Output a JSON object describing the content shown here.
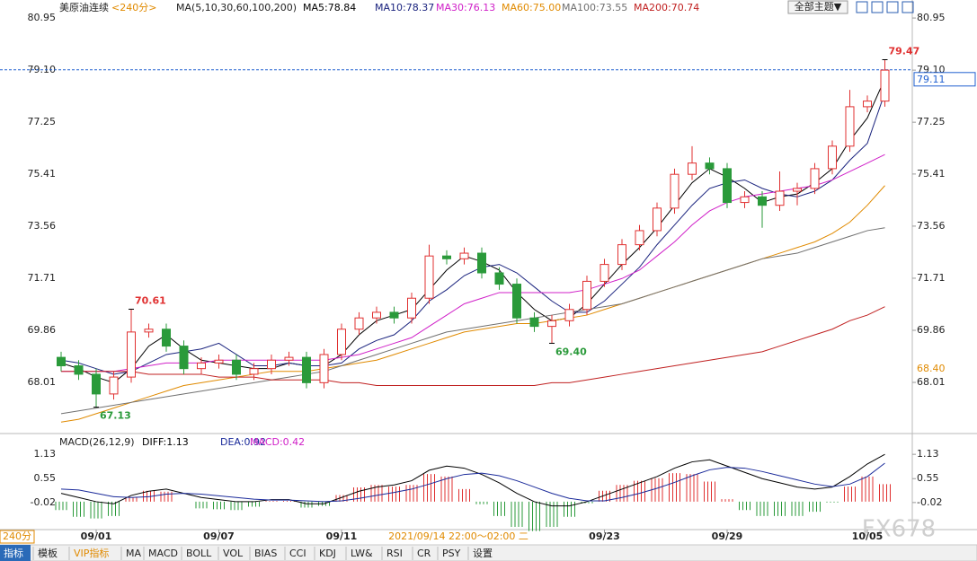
{
  "chart_data": [
    {
      "type": "candlestick",
      "title": "美原油连续",
      "period": "<240分>",
      "indicator": "MA(5,10,30,60,100,200)",
      "categories": [
        null,
        null,
        "09/01",
        null,
        null,
        null,
        null,
        null,
        null,
        "09/07",
        null,
        null,
        null,
        null,
        null,
        null,
        "09/11",
        null,
        null,
        null,
        null,
        null,
        null,
        null,
        null,
        null,
        null,
        null,
        null,
        null,
        null,
        "09/23",
        null,
        null,
        null,
        null,
        null,
        null,
        "09/29",
        null,
        null,
        null,
        null,
        null,
        null,
        null,
        "10/05",
        null
      ],
      "open": [
        68.9,
        68.6,
        68.3,
        67.6,
        68.2,
        69.8,
        69.9,
        69.3,
        68.5,
        68.7,
        68.8,
        68.3,
        68.5,
        68.8,
        68.9,
        68.0,
        69.0,
        69.9,
        70.3,
        70.5,
        70.3,
        71.0,
        72.5,
        72.4,
        72.6,
        71.9,
        71.5,
        70.3,
        70.0,
        70.2,
        70.6,
        71.6,
        72.2,
        72.9,
        73.4,
        74.2,
        75.4,
        75.8,
        75.6,
        74.4,
        74.6,
        74.3,
        74.8,
        74.9,
        75.6,
        76.4,
        77.8,
        78.0
      ],
      "high": [
        69.1,
        68.8,
        68.5,
        68.4,
        70.61,
        70.1,
        70.1,
        69.5,
        68.9,
        69.0,
        69.0,
        68.7,
        69.0,
        69.1,
        69.1,
        69.2,
        70.1,
        70.5,
        70.7,
        70.7,
        71.2,
        72.9,
        72.7,
        72.8,
        72.8,
        72.1,
        71.7,
        70.5,
        70.4,
        70.8,
        71.8,
        72.4,
        73.1,
        73.6,
        74.4,
        75.6,
        76.4,
        76.0,
        75.8,
        74.8,
        74.8,
        75.5,
        75.1,
        75.8,
        76.6,
        78.4,
        78.2,
        79.47
      ],
      "low": [
        68.4,
        68.1,
        67.13,
        67.4,
        68.0,
        69.6,
        69.1,
        68.3,
        68.3,
        68.5,
        68.1,
        68.1,
        68.3,
        68.6,
        67.8,
        67.8,
        68.8,
        69.7,
        70.1,
        70.1,
        70.1,
        70.8,
        72.2,
        72.2,
        71.7,
        71.3,
        70.1,
        69.8,
        69.4,
        70.0,
        70.4,
        71.4,
        72.0,
        72.7,
        73.2,
        74.0,
        75.2,
        75.4,
        74.2,
        74.2,
        73.5,
        74.1,
        74.3,
        74.7,
        75.4,
        76.2,
        77.6,
        77.8
      ],
      "close": [
        68.6,
        68.3,
        67.6,
        68.2,
        69.8,
        69.9,
        69.3,
        68.5,
        68.7,
        68.8,
        68.3,
        68.5,
        68.8,
        68.9,
        68.0,
        69.0,
        69.9,
        70.3,
        70.5,
        70.3,
        71.0,
        72.5,
        72.4,
        72.6,
        71.9,
        71.5,
        70.3,
        70.0,
        70.2,
        70.6,
        71.6,
        72.2,
        72.9,
        73.4,
        74.2,
        75.4,
        75.8,
        75.6,
        74.4,
        74.6,
        74.3,
        74.8,
        74.9,
        75.6,
        76.4,
        77.8,
        78.0,
        79.1
      ],
      "up_color": "#e03030",
      "down_color": "#2a9a3a",
      "series": [
        {
          "name": "MA5:78.84",
          "color": "#000000",
          "values": [
            68.7,
            68.5,
            68.2,
            68.0,
            68.5,
            69.3,
            69.7,
            69.2,
            68.8,
            68.7,
            68.6,
            68.5,
            68.5,
            68.7,
            68.6,
            68.6,
            69.0,
            69.7,
            70.2,
            70.4,
            70.6,
            71.3,
            72.0,
            72.5,
            72.3,
            72.0,
            71.2,
            70.6,
            70.2,
            70.3,
            70.8,
            71.5,
            72.2,
            72.8,
            73.5,
            74.3,
            75.1,
            75.6,
            75.3,
            74.9,
            74.4,
            74.6,
            74.7,
            75.1,
            75.6,
            76.6,
            77.4,
            78.8
          ]
        },
        {
          "name": "MA10:78.37",
          "color": "#1a237e",
          "values": [
            68.8,
            68.7,
            68.5,
            68.3,
            68.4,
            68.7,
            69.0,
            69.1,
            69.2,
            69.4,
            69.0,
            68.6,
            68.6,
            68.7,
            68.6,
            68.6,
            68.7,
            69.2,
            69.5,
            69.7,
            70.2,
            70.9,
            71.3,
            71.8,
            72.1,
            72.2,
            71.9,
            71.4,
            70.9,
            70.5,
            70.5,
            70.9,
            71.5,
            72.1,
            72.9,
            73.6,
            74.3,
            74.9,
            75.1,
            75.2,
            74.9,
            74.7,
            74.6,
            74.8,
            75.2,
            75.9,
            76.5,
            78.3
          ]
        },
        {
          "name": "MA30:76.13",
          "color": "#d020c8",
          "values": [
            68.4,
            68.4,
            68.4,
            68.4,
            68.5,
            68.6,
            68.7,
            68.7,
            68.7,
            68.8,
            68.8,
            68.8,
            68.8,
            68.8,
            68.8,
            68.8,
            68.9,
            69.0,
            69.2,
            69.4,
            69.6,
            70.0,
            70.4,
            70.8,
            71.0,
            71.2,
            71.2,
            71.2,
            71.2,
            71.2,
            71.3,
            71.5,
            71.7,
            72.0,
            72.5,
            73.0,
            73.6,
            74.1,
            74.4,
            74.6,
            74.7,
            74.8,
            74.9,
            75.0,
            75.2,
            75.5,
            75.8,
            76.1
          ]
        },
        {
          "name": "MA60:75.00",
          "color": "#e08a00",
          "values": [
            66.6,
            66.7,
            66.9,
            67.1,
            67.3,
            67.5,
            67.7,
            67.9,
            68.0,
            68.1,
            68.2,
            68.3,
            68.4,
            68.4,
            68.4,
            68.5,
            68.6,
            68.7,
            68.8,
            69.0,
            69.2,
            69.4,
            69.6,
            69.8,
            69.9,
            70.0,
            70.1,
            70.1,
            70.2,
            70.3,
            70.4,
            70.6,
            70.8,
            71.0,
            71.2,
            71.4,
            71.6,
            71.8,
            72.0,
            72.2,
            72.4,
            72.6,
            72.8,
            73.0,
            73.3,
            73.7,
            74.3,
            75.0
          ]
        },
        {
          "name": "MA100:73.55",
          "color": "#707070",
          "values": [
            66.9,
            67.0,
            67.1,
            67.2,
            67.3,
            67.4,
            67.5,
            67.6,
            67.7,
            67.8,
            67.9,
            68.0,
            68.1,
            68.2,
            68.3,
            68.4,
            68.6,
            68.8,
            69.0,
            69.2,
            69.4,
            69.6,
            69.8,
            69.9,
            70.0,
            70.1,
            70.2,
            70.3,
            70.4,
            70.5,
            70.6,
            70.7,
            70.8,
            71.0,
            71.2,
            71.4,
            71.6,
            71.8,
            72.0,
            72.2,
            72.4,
            72.5,
            72.6,
            72.8,
            73.0,
            73.2,
            73.4,
            73.5
          ]
        },
        {
          "name": "MA200:70.74",
          "color": "#c02020",
          "values": [
            68.4,
            68.4,
            68.4,
            68.4,
            68.4,
            68.3,
            68.3,
            68.3,
            68.3,
            68.2,
            68.2,
            68.2,
            68.1,
            68.1,
            68.1,
            68.1,
            68.0,
            68.0,
            67.9,
            67.9,
            67.9,
            67.9,
            67.9,
            67.9,
            67.9,
            67.9,
            67.9,
            67.9,
            68.0,
            68.0,
            68.1,
            68.2,
            68.3,
            68.4,
            68.5,
            68.6,
            68.7,
            68.8,
            68.9,
            69.0,
            69.1,
            69.3,
            69.5,
            69.7,
            69.9,
            70.2,
            70.4,
            70.7
          ]
        }
      ],
      "ylim": [
        66.29,
        81.59
      ],
      "yticks": [
        80.95,
        {
          "value": 79.1,
          "label": "79.10"
        },
        77.25,
        75.41,
        73.56,
        71.71,
        69.86,
        68.01
      ],
      "annotations": [
        {
          "value": 70.61,
          "color": "#e03030"
        },
        {
          "value": 67.13,
          "color": "#2a9a3a"
        },
        {
          "value": {
            "value": 69.4,
            "label": "69.40"
          },
          "color": "#2a9a3a"
        },
        {
          "value": 79.47,
          "color": "#e03030"
        }
      ],
      "last_price": 79.11,
      "last_price_color": "#2060d0",
      "side_label": {
        "value": 68.4,
        "label": "68.40"
      },
      "side_label_color": "#e08a00"
    },
    {
      "type": "macd",
      "title": "MACD(26,12,9)",
      "series": [
        {
          "name": "DIFF:1.13",
          "color": "#000000",
          "values": [
            0.2,
            0.1,
            0.0,
            -0.05,
            0.15,
            0.25,
            0.3,
            0.2,
            0.1,
            0.05,
            0.0,
            0.0,
            0.05,
            0.05,
            -0.05,
            -0.05,
            0.1,
            0.25,
            0.35,
            0.4,
            0.5,
            0.75,
            0.85,
            0.8,
            0.65,
            0.45,
            0.2,
            0.0,
            -0.1,
            -0.1,
            0.0,
            0.15,
            0.3,
            0.45,
            0.6,
            0.8,
            0.95,
            1.0,
            0.85,
            0.7,
            0.55,
            0.45,
            0.35,
            0.3,
            0.35,
            0.6,
            0.9,
            1.13
          ]
        },
        {
          "name": "DEA:0.92",
          "color": "#1a2a9a",
          "values": [
            0.3,
            0.28,
            0.2,
            0.12,
            0.1,
            0.12,
            0.18,
            0.2,
            0.18,
            0.14,
            0.1,
            0.06,
            0.04,
            0.04,
            0.02,
            0.0,
            0.02,
            0.08,
            0.15,
            0.22,
            0.3,
            0.42,
            0.55,
            0.65,
            0.68,
            0.62,
            0.5,
            0.35,
            0.2,
            0.08,
            0.02,
            0.02,
            0.1,
            0.2,
            0.32,
            0.46,
            0.62,
            0.76,
            0.82,
            0.8,
            0.72,
            0.62,
            0.52,
            0.42,
            0.36,
            0.42,
            0.6,
            0.92
          ]
        }
      ],
      "histogram": {
        "name": "MACD:0.42",
        "color": "#d020c8",
        "up_color": "#e03030",
        "down_color": "#2a9a3a",
        "values": [
          -0.2,
          -0.36,
          -0.4,
          -0.34,
          0.1,
          0.26,
          0.24,
          0.0,
          -0.16,
          -0.18,
          -0.2,
          -0.12,
          0.02,
          0.02,
          -0.14,
          -0.1,
          0.16,
          0.34,
          0.4,
          0.36,
          0.4,
          0.66,
          0.6,
          0.3,
          -0.06,
          -0.34,
          -0.6,
          -0.7,
          -0.6,
          -0.36,
          -0.04,
          0.26,
          0.4,
          0.5,
          0.56,
          0.68,
          0.66,
          0.48,
          0.06,
          -0.2,
          -0.34,
          -0.34,
          -0.34,
          -0.24,
          -0.02,
          0.36,
          0.6,
          0.42
        ]
      },
      "ylim": [
        -0.665,
        1.54
      ],
      "yticks": [
        1.13,
        0.55,
        -0.02
      ]
    }
  ],
  "time_label": "2021/09/14 22:00～02:00 二",
  "corner_label": "240分",
  "theme_button": "全部主题▼",
  "watermark": "FX678",
  "toolbar": [
    "指标",
    "模板",
    "VIP指标",
    "MA",
    "MACD",
    "BOLL",
    "VOL",
    "BIAS",
    "CCI",
    "KDJ",
    "LW&",
    "RSI",
    "CR",
    "PSY",
    "设置"
  ]
}
